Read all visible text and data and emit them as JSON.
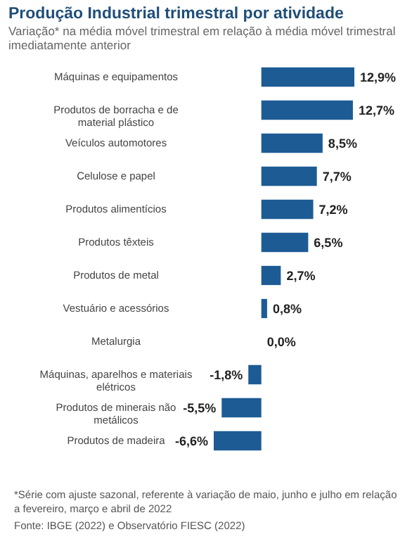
{
  "chart_data": {
    "type": "bar",
    "orientation": "horizontal",
    "title": "Produção Industrial trimestral por atividade",
    "subtitle": "Variação* na média móvel trimestral em relação à média móvel trimestral imediatamente anterior",
    "categories": [
      "Máquinas e equipamentos",
      "Produtos de borracha e de\nmaterial plástico",
      "Veículos automotores",
      "Celulose e papel",
      "Produtos alimentícios",
      "Produtos têxteis",
      "Produtos de metal",
      "Vestuário e acessórios",
      "Metalurgia",
      "Máquinas, aparelhos e materiais\nelétricos",
      "Produtos de minerais não\nmetálicos",
      "Produtos de madeira"
    ],
    "values": [
      12.9,
      12.7,
      8.5,
      7.7,
      7.2,
      6.5,
      2.7,
      0.8,
      0.0,
      -1.8,
      -5.5,
      -6.6
    ],
    "value_labels": [
      "12,9%",
      "12,7%",
      "8,5%",
      "7,7%",
      "7,2%",
      "6,5%",
      "2,7%",
      "0,8%",
      "0,0%",
      "-1,8%",
      "-5,5%",
      "-6,6%"
    ],
    "color": "#1d5b94",
    "annotations": [
      "*Série com ajuste sazonal, referente à variação de maio, junho e julho em relação a fevereiro, março e abril de 2022",
      "Fonte: IBGE (2022) e Observatório FIESC (2022)"
    ]
  }
}
